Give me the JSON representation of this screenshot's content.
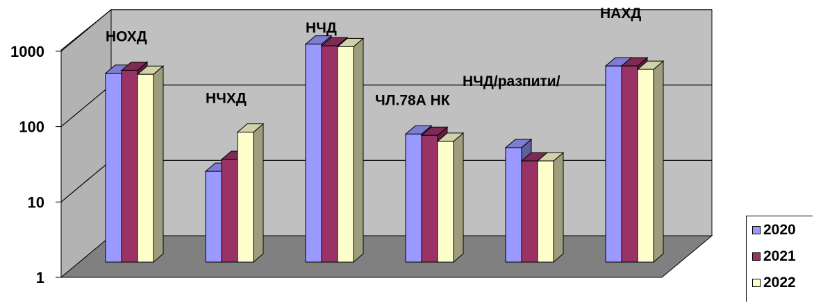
{
  "chart_data": {
    "type": "bar",
    "categories": [
      "НОХД",
      "НЧХД",
      "НЧД",
      "ЧЛ.78А НК",
      "НЧД/разпити/",
      "НАХД"
    ],
    "series": [
      {
        "name": "2020",
        "color": "#9999ff",
        "values": [
          320,
          16,
          780,
          50,
          33,
          400
        ]
      },
      {
        "name": "2021",
        "color": "#993366",
        "values": [
          350,
          23,
          740,
          48,
          22,
          400
        ]
      },
      {
        "name": "2022",
        "color": "#ffffcc",
        "values": [
          310,
          53,
          720,
          40,
          22,
          360
        ]
      }
    ],
    "yscale": "log",
    "ylim": [
      1,
      10000
    ],
    "yticks": [
      "1",
      "10",
      "100",
      "1000"
    ],
    "ytick_values": [
      1,
      10,
      100,
      1000
    ],
    "grid": true,
    "legend": "bottom-right",
    "title": "",
    "xlabel": "",
    "ylabel": ""
  }
}
